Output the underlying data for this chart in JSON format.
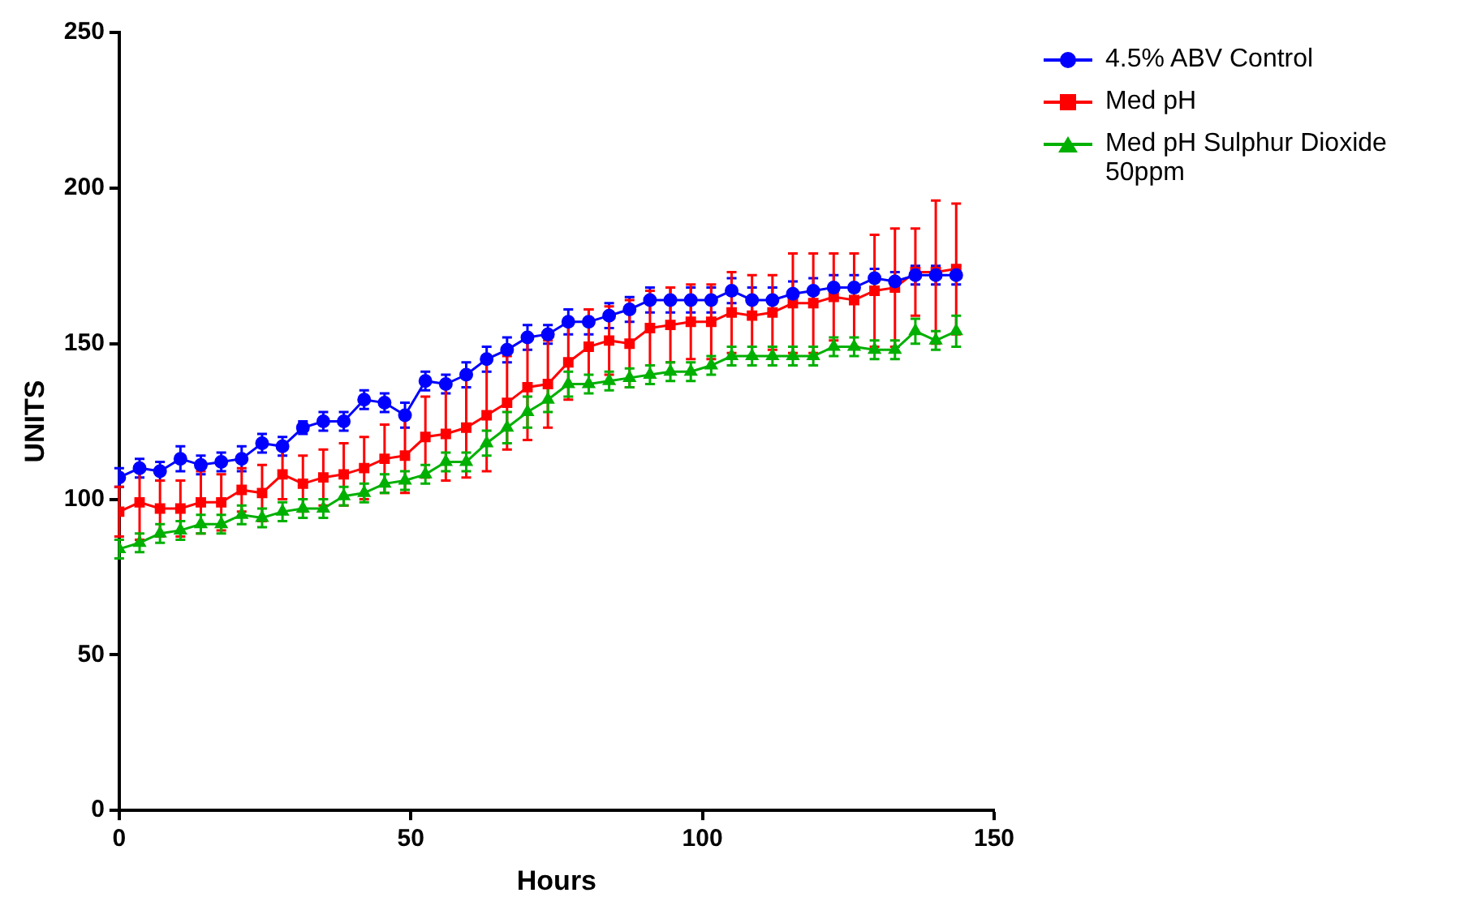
{
  "chart_data": {
    "type": "line",
    "xlabel": "Hours",
    "ylabel": "UNITS",
    "xlim": [
      0,
      150
    ],
    "xticks": [
      0,
      50,
      100,
      150
    ],
    "ylim": [
      0,
      250
    ],
    "yticks": [
      0,
      50,
      100,
      150,
      200,
      250
    ],
    "grid": false,
    "legend": "top right",
    "x": [
      0,
      3.5,
      7,
      10.5,
      14,
      17.5,
      21,
      24.5,
      28,
      31.5,
      35,
      38.5,
      42,
      45.5,
      49,
      52.5,
      56,
      59.5,
      63,
      66.5,
      70,
      73.5,
      77,
      80.5,
      84,
      87.5,
      91,
      94.5,
      98,
      101.5,
      105,
      108.5,
      112,
      115.5,
      119,
      122.5,
      126,
      129.5,
      133,
      136.5,
      140,
      143.5
    ],
    "series": [
      {
        "name": "4.5% ABV Control",
        "color": "#0000ff",
        "marker": "circle",
        "values": [
          107,
          110,
          109,
          113,
          111,
          112,
          113,
          118,
          117,
          123,
          125,
          125,
          132,
          131,
          127,
          138,
          137,
          140,
          145,
          148,
          152,
          153,
          157,
          157,
          159,
          161,
          164,
          164,
          164,
          164,
          167,
          164,
          164,
          166,
          167,
          168,
          168,
          171,
          170,
          172,
          172,
          172
        ],
        "errors": [
          3,
          3,
          3,
          4,
          3,
          3,
          4,
          3,
          3,
          2,
          3,
          3,
          3,
          3,
          4,
          3,
          3,
          4,
          4,
          4,
          4,
          3,
          4,
          4,
          4,
          4,
          4,
          4,
          4,
          4,
          4,
          4,
          4,
          4,
          4,
          4,
          4,
          3,
          3,
          3,
          3,
          3
        ]
      },
      {
        "name": "Med pH",
        "color": "#ff0000",
        "marker": "square",
        "values": [
          96,
          99,
          97,
          97,
          99,
          99,
          103,
          102,
          108,
          105,
          107,
          108,
          110,
          113,
          114,
          120,
          121,
          123,
          127,
          131,
          136,
          137,
          144,
          149,
          151,
          150,
          155,
          156,
          157,
          157,
          160,
          159,
          160,
          163,
          163,
          165,
          164,
          167,
          168,
          173,
          173,
          174
        ],
        "errors": [
          8,
          12,
          9,
          9,
          10,
          9,
          7,
          9,
          8,
          9,
          9,
          10,
          10,
          11,
          12,
          13,
          15,
          16,
          18,
          15,
          17,
          14,
          12,
          12,
          11,
          14,
          12,
          12,
          12,
          12,
          13,
          13,
          12,
          16,
          16,
          14,
          15,
          18,
          19,
          14,
          23,
          21
        ]
      },
      {
        "name": "Med pH Sulphur Dioxide 50ppm",
        "color": "#00b000",
        "marker": "triangle",
        "values": [
          84,
          86,
          89,
          90,
          92,
          92,
          95,
          94,
          96,
          97,
          97,
          101,
          102,
          105,
          106,
          108,
          112,
          112,
          118,
          123,
          128,
          132,
          137,
          137,
          138,
          139,
          140,
          141,
          141,
          143,
          146,
          146,
          146,
          146,
          146,
          149,
          149,
          148,
          148,
          154,
          151,
          154
        ],
        "errors": [
          3,
          3,
          3,
          3,
          3,
          3,
          3,
          3,
          3,
          3,
          3,
          3,
          3,
          3,
          3,
          3,
          3,
          3,
          4,
          5,
          5,
          4,
          4,
          3,
          3,
          3,
          3,
          3,
          3,
          3,
          3,
          3,
          3,
          3,
          3,
          3,
          3,
          3,
          3,
          4,
          3,
          5
        ]
      }
    ]
  }
}
